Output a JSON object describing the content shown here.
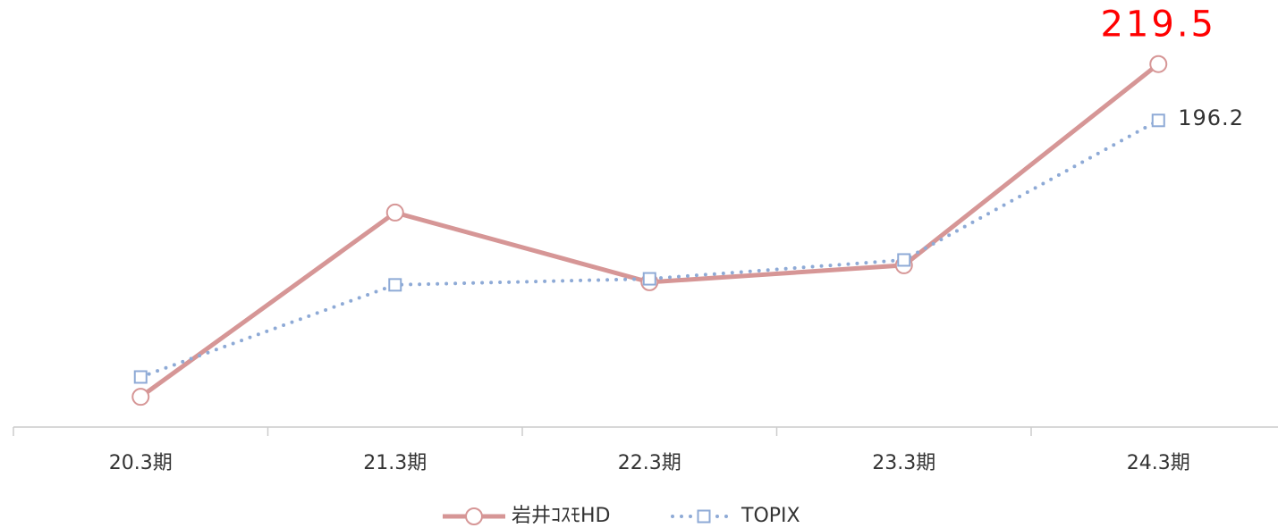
{
  "chart_data": {
    "type": "line",
    "categories": [
      "20.3期",
      "21.3期",
      "22.3期",
      "23.3期",
      "24.3期"
    ],
    "series": [
      {
        "name": "岩井ｺｽﾓHD",
        "color": "#d69696",
        "marker": "circle",
        "dash": "solid",
        "label_color": "#ff0000",
        "label_last": true,
        "values": [
          81.9,
          158.1,
          129.3,
          136.3,
          219.5
        ]
      },
      {
        "name": "TOPIX",
        "color": "#8eaad6",
        "marker": "square",
        "dash": "dotted",
        "label_color": "#333333",
        "label_last": true,
        "values": [
          90.1,
          128.2,
          130.7,
          138.5,
          196.2
        ]
      }
    ],
    "ylim": [
      69.4,
      246
    ],
    "grid": false,
    "legend": "bottom"
  }
}
